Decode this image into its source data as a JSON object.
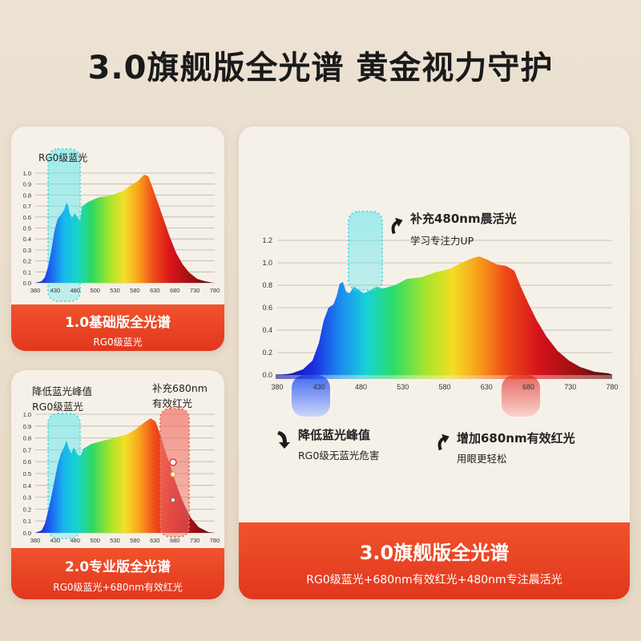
{
  "page_title": "3.0旗舰版全光谱 黄金视力守护",
  "axis": {
    "wavelengths": [
      "380",
      "430",
      "480",
      "500",
      "530",
      "580",
      "630",
      "680",
      "730",
      "780"
    ],
    "big_wavelengths": [
      "380",
      "430",
      "480",
      "530",
      "580",
      "630",
      "680",
      "730",
      "780"
    ],
    "small_y": [
      "1.0",
      "0.9",
      "0.8",
      "0.7",
      "0.6",
      "0.5",
      "0.4",
      "0.3",
      "0.2",
      "0.1",
      "0.0"
    ],
    "big_y": [
      "1.2",
      "1.0",
      "0.8",
      "0.6",
      "0.4",
      "0.2",
      "0.0"
    ]
  },
  "card1": {
    "label": "RG0级蓝光",
    "banner_title": "1.0基础版全光谱",
    "banner_sub": "RG0级蓝光"
  },
  "card2": {
    "label_line1": "降低蓝光峰值",
    "label_line2": "RG0级蓝光",
    "red_line1": "补充680nm",
    "red_line2": "有效红光",
    "banner_title": "2.0专业版全光谱",
    "banner_sub": "RG0级蓝光+680nm有效红光"
  },
  "card3": {
    "a1_title": "补充480nm晨活光",
    "a1_sub": "学习专注力UP",
    "a2_title": "降低蓝光峰值",
    "a2_sub": "RG0级无蓝光危害",
    "a3_title": "增加680nm有效红光",
    "a3_sub": "用眼更轻松",
    "banner_title": "3.0旗舰版全光谱",
    "banner_sub": "RG0级蓝光+680nm有效红光+480nm专注晨活光"
  }
}
